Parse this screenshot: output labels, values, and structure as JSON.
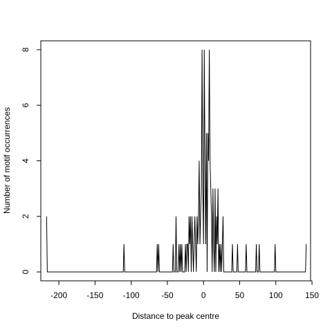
{
  "chart_data": {
    "type": "line",
    "title": "",
    "xlabel": "Distance to peak centre",
    "ylabel": "Number of motif occurrences",
    "xlim": [
      -225,
      148
    ],
    "ylim": [
      -0.32,
      8.32
    ],
    "x_ticks": [
      -200,
      -150,
      -100,
      -50,
      0,
      50,
      100,
      150
    ],
    "y_ticks": [
      0,
      2,
      4,
      6,
      8
    ],
    "grid": false,
    "legend": "none",
    "line_color": "#000000",
    "series": [
      {
        "points": [
          [
            -217,
            2
          ],
          [
            -216,
            0
          ],
          [
            -111,
            0
          ],
          [
            -110,
            1
          ],
          [
            -109,
            0
          ],
          [
            -65,
            0
          ],
          [
            -64,
            1
          ],
          [
            -63,
            0
          ],
          [
            -62,
            1
          ],
          [
            -61,
            0
          ],
          [
            -43,
            0
          ],
          [
            -42,
            1
          ],
          [
            -41,
            0
          ],
          [
            -39,
            0
          ],
          [
            -38,
            2
          ],
          [
            -37,
            0
          ],
          [
            -35,
            0
          ],
          [
            -34,
            1
          ],
          [
            -33,
            0
          ],
          [
            -32,
            1
          ],
          [
            -31,
            0
          ],
          [
            -30,
            1
          ],
          [
            -29,
            0
          ],
          [
            -26,
            0
          ],
          [
            -25,
            1
          ],
          [
            -24,
            0
          ],
          [
            -23,
            1
          ],
          [
            -22,
            1
          ],
          [
            -21,
            0
          ],
          [
            -20,
            2
          ],
          [
            -19,
            1
          ],
          [
            -18,
            2
          ],
          [
            -17,
            0
          ],
          [
            -16,
            2
          ],
          [
            -15,
            1
          ],
          [
            -14,
            0
          ],
          [
            -13,
            1
          ],
          [
            -12,
            2
          ],
          [
            -11,
            1
          ],
          [
            -10,
            0
          ],
          [
            -9,
            2
          ],
          [
            -8,
            1
          ],
          [
            -7,
            2
          ],
          [
            -6,
            4
          ],
          [
            -5,
            1
          ],
          [
            -4,
            2
          ],
          [
            -3,
            3
          ],
          [
            -2,
            8
          ],
          [
            -1,
            3
          ],
          [
            0,
            1
          ],
          [
            1,
            8
          ],
          [
            2,
            4
          ],
          [
            3,
            1
          ],
          [
            4,
            5
          ],
          [
            5,
            0
          ],
          [
            6,
            5
          ],
          [
            7,
            4
          ],
          [
            8,
            8
          ],
          [
            9,
            4
          ],
          [
            10,
            3
          ],
          [
            11,
            2
          ],
          [
            12,
            0
          ],
          [
            13,
            3
          ],
          [
            14,
            1
          ],
          [
            15,
            0
          ],
          [
            16,
            3
          ],
          [
            17,
            0
          ],
          [
            18,
            2
          ],
          [
            19,
            1
          ],
          [
            20,
            3
          ],
          [
            21,
            0
          ],
          [
            22,
            1
          ],
          [
            23,
            0
          ],
          [
            24,
            1
          ],
          [
            25,
            0
          ],
          [
            26,
            1
          ],
          [
            27,
            2
          ],
          [
            28,
            0
          ],
          [
            39,
            0
          ],
          [
            40,
            1
          ],
          [
            41,
            0
          ],
          [
            46,
            0
          ],
          [
            47,
            1
          ],
          [
            48,
            0
          ],
          [
            58,
            0
          ],
          [
            59,
            1
          ],
          [
            60,
            0
          ],
          [
            72,
            0
          ],
          [
            73,
            1
          ],
          [
            74,
            0
          ],
          [
            76,
            0
          ],
          [
            77,
            1
          ],
          [
            78,
            0
          ],
          [
            98,
            0
          ],
          [
            99,
            1
          ],
          [
            100,
            0
          ],
          [
            141,
            0
          ],
          [
            142,
            1
          ]
        ]
      }
    ]
  }
}
